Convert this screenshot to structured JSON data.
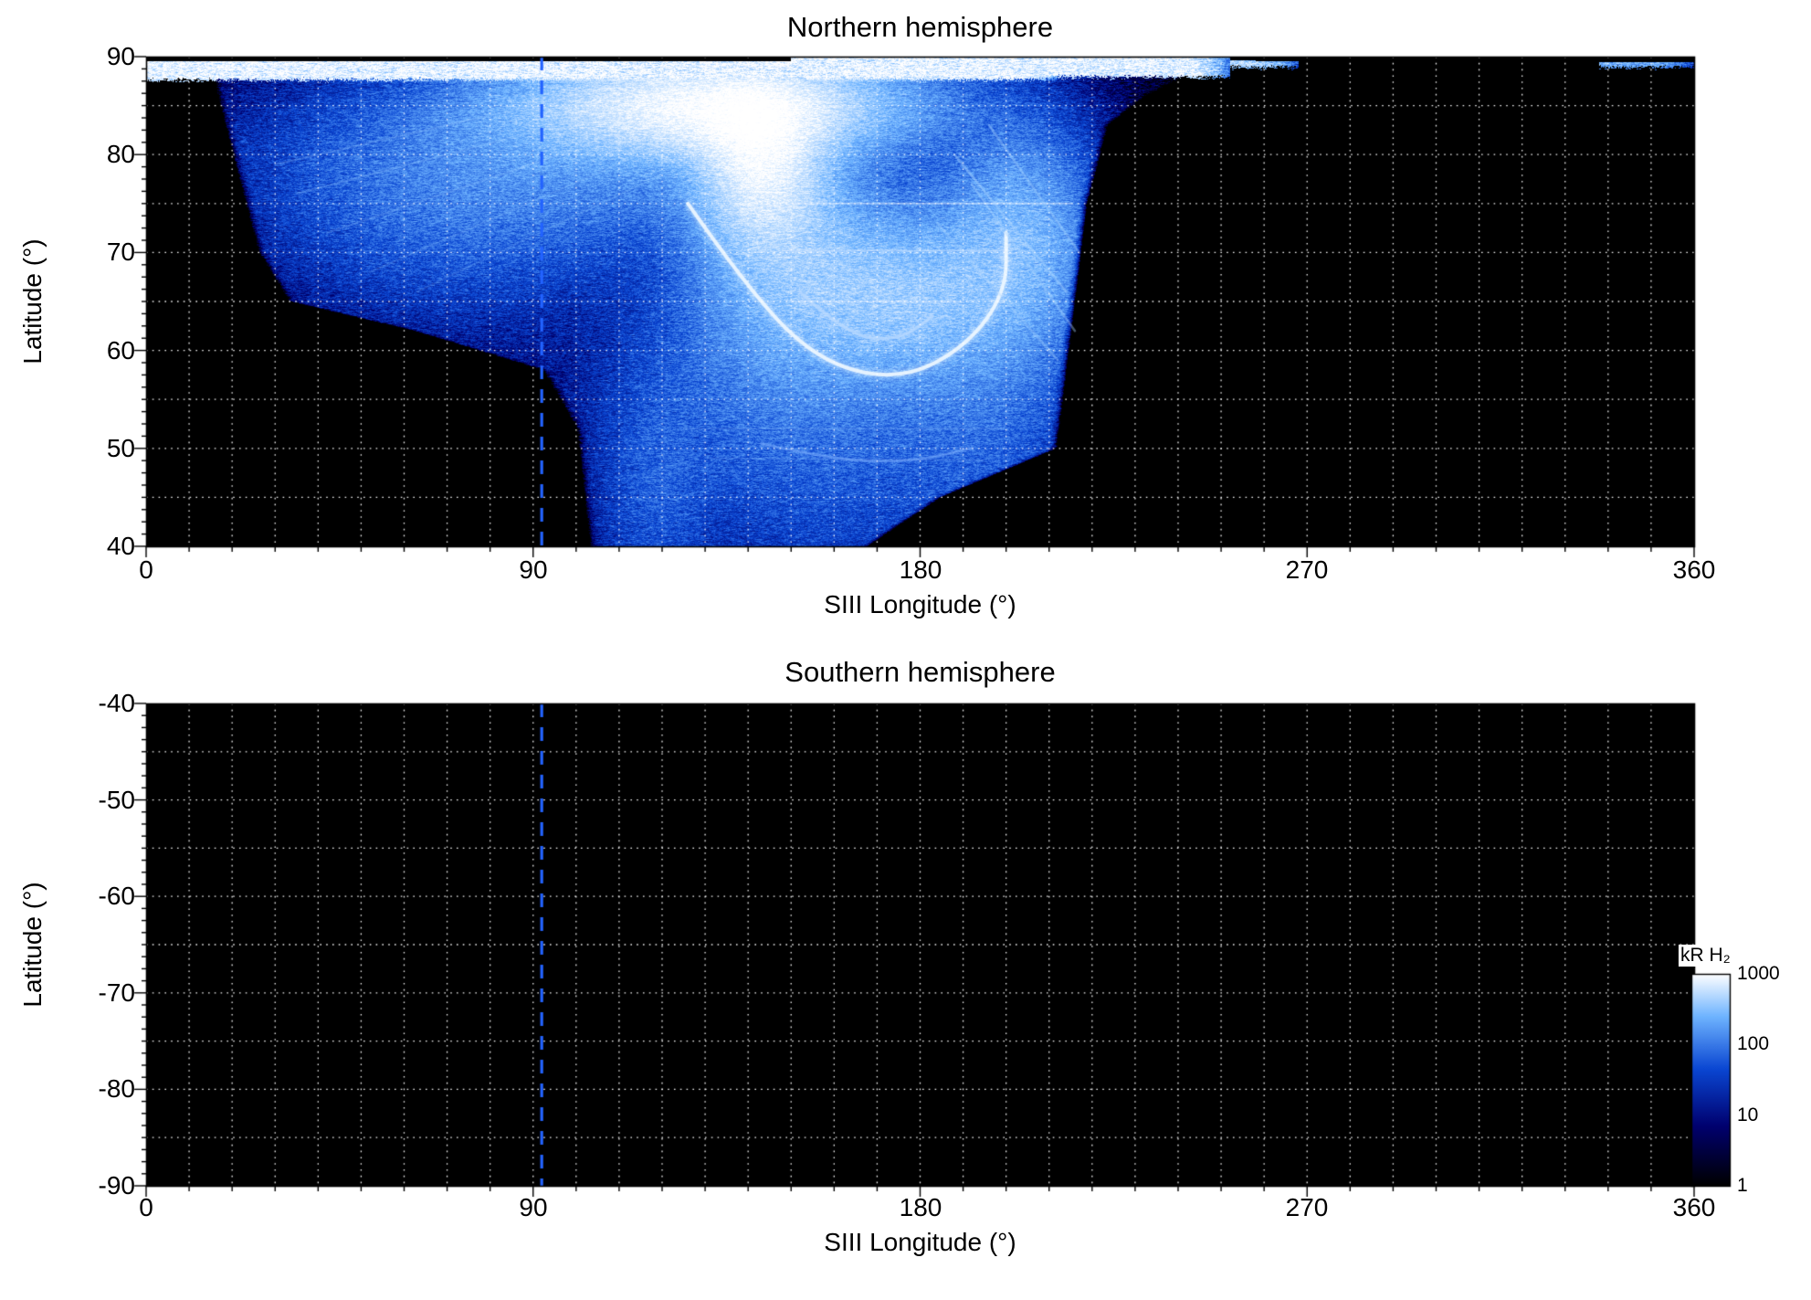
{
  "figure": {
    "background": "#ffffff",
    "colorbar": {
      "label": "kR H₂",
      "ticks": [
        "1000",
        "100",
        "10",
        "1"
      ],
      "scale": "log",
      "range": [
        1,
        1000
      ],
      "colormap": {
        "stops": [
          0,
          0.28,
          0.55,
          0.8,
          1
        ],
        "colors": [
          "#000000",
          "#00006e",
          "#0a46d2",
          "#6fb4ff",
          "#ffffff"
        ]
      }
    }
  },
  "chart_data": [
    {
      "type": "heatmap",
      "title": "Northern hemisphere",
      "xlabel": "SIII Longitude (°)",
      "ylabel": "Latitude (°)",
      "xlim": [
        0,
        360
      ],
      "ylim": [
        40,
        90
      ],
      "xticks": [
        "0",
        "90",
        "180",
        "270",
        "360"
      ],
      "yticks": [
        "90",
        "80",
        "70",
        "60",
        "50",
        "40"
      ],
      "grid": {
        "color": "#ffffff",
        "style": "dotted",
        "lon_step": 10,
        "lat_step": 5
      },
      "background": "#000000",
      "marker_line": {
        "longitude": 92,
        "color": "#2363ff",
        "style": "dashed"
      },
      "units": "kR H₂",
      "intensity_range_kR": [
        1,
        1000
      ],
      "emission": {
        "present": true,
        "description": "Speckled H2 auroral emission covering ~15°–220° longitude: bright white polar band near 88°–90° latitude (lon 0°–250°), a bright funnel narrowing from (130°,85°) down toward (150°,60°), a white hook-shaped auroral arc through (160°,58°)–(200°,67°), fanned streaks on both flanks, diffuse dark-blue speckle down to 40° latitude between lon ~110°–215°, sharp cutoff near lon 218°; thin polar streak near lon 340°–360°.",
        "left_boundary": [
          [
            40,
            103
          ],
          [
            52,
            100
          ],
          [
            58,
            92
          ],
          [
            62,
            62
          ],
          [
            65,
            33
          ],
          [
            70,
            26
          ],
          [
            80,
            20
          ],
          [
            90,
            14
          ]
        ],
        "right_boundary": [
          [
            40,
            168
          ],
          [
            45,
            185
          ],
          [
            50,
            212
          ],
          [
            75,
            219
          ],
          [
            83,
            224
          ],
          [
            86,
            233
          ],
          [
            90,
            252
          ]
        ],
        "blobs": [
          {
            "lon": 132,
            "lat": 85,
            "sx": 26,
            "sy": 3.2,
            "peak": 900
          },
          {
            "lon": 143,
            "lat": 79,
            "sx": 9,
            "sy": 5,
            "peak": 700
          },
          {
            "lon": 150,
            "lat": 69,
            "sx": 13,
            "sy": 6.5,
            "peak": 280
          },
          {
            "lon": 177,
            "lat": 65.5,
            "sx": 15,
            "sy": 5.5,
            "peak": 320
          },
          {
            "lon": 203,
            "lat": 71,
            "sx": 11,
            "sy": 7,
            "peak": 260
          },
          {
            "lon": 95,
            "lat": 80,
            "sx": 38,
            "sy": 5.5,
            "peak": 130
          },
          {
            "lon": 70,
            "lat": 72,
            "sx": 26,
            "sy": 6,
            "peak": 45
          },
          {
            "lon": 148,
            "lat": 58,
            "sx": 20,
            "sy": 7,
            "peak": 70
          },
          {
            "lon": 160,
            "lat": 47,
            "sx": 26,
            "sy": 8,
            "peak": 40
          },
          {
            "lon": 118,
            "lat": 46,
            "sx": 8,
            "sy": 8,
            "peak": 45
          },
          {
            "lon": 196,
            "lat": 54,
            "sx": 14,
            "sy": 8,
            "peak": 55
          },
          {
            "lon": 140,
            "lat": 65,
            "sx": 60,
            "sy": 18,
            "peak": 12
          }
        ],
        "polar_bands": [
          {
            "lat": [
              87.6,
              89.5
            ],
            "lon": [
              0,
              212
            ],
            "peak": 900
          },
          {
            "lat": [
              87.9,
              90
            ],
            "lon": [
              150,
              252
            ],
            "peak": 850
          },
          {
            "lat": [
              88.9,
              89.6
            ],
            "lon": [
              252,
              268
            ],
            "peak": 500
          },
          {
            "lat": [
              88.9,
              89.4
            ],
            "lon": [
              338,
              360
            ],
            "peak": 260
          }
        ],
        "top_black": {
          "above_lat": 89.55,
          "except_lon": [
            150,
            258
          ]
        },
        "arcs": [
          {
            "pts": [
              [
                126,
                75
              ],
              [
                142,
                65
              ],
              [
                158,
                58.5
              ],
              [
                176,
                57
              ],
              [
                191,
                60.5
              ],
              [
                200,
                66
              ],
              [
                200,
                72
              ]
            ],
            "w": 4,
            "color": "rgba(240,248,255,0.9)",
            "blur": 7
          },
          {
            "pts": [
              [
                152,
                66
              ],
              [
                163,
                61.5
              ],
              [
                175,
                61
              ],
              [
                183,
                63.5
              ]
            ],
            "w": 3,
            "color": "rgba(185,218,255,0.75)",
            "blur": 5
          },
          {
            "pts": [
              [
                143,
                50.5
              ],
              [
                160,
                48.8
              ],
              [
                178,
                48.6
              ],
              [
                192,
                50
              ]
            ],
            "w": 2.5,
            "color": "rgba(130,180,255,0.5)",
            "blur": 4
          }
        ],
        "streaks": [
          {
            "pts": [
              [
                30,
                79
              ],
              [
                100,
                86
              ]
            ],
            "w": 2,
            "color": "rgba(150,200,255,0.30)"
          },
          {
            "pts": [
              [
                35,
                76
              ],
              [
                105,
                84
              ]
            ],
            "w": 2,
            "color": "rgba(150,200,255,0.28)"
          },
          {
            "pts": [
              [
                42,
                72
              ],
              [
                110,
                82
              ]
            ],
            "w": 2,
            "color": "rgba(150,200,255,0.25)"
          },
          {
            "pts": [
              [
                52,
                68
              ],
              [
                115,
                80
              ]
            ],
            "w": 2,
            "color": "rgba(150,200,255,0.22)"
          },
          {
            "pts": [
              [
                63,
                66
              ],
              [
                120,
                78
              ]
            ],
            "w": 2,
            "color": "rgba(150,200,255,0.20)"
          },
          {
            "pts": [
              [
                188,
                80
              ],
              [
                214,
                66
              ]
            ],
            "w": 2.5,
            "color": "rgba(170,212,255,0.45)"
          },
          {
            "pts": [
              [
                192,
                77
              ],
              [
                216,
                62
              ]
            ],
            "w": 2.5,
            "color": "rgba(170,212,255,0.40)"
          },
          {
            "pts": [
              [
                196,
                83
              ],
              [
                217,
                70
              ]
            ],
            "w": 2.5,
            "color": "rgba(170,212,255,0.38)"
          },
          {
            "pts": [
              [
                184,
                73
              ],
              [
                212,
                59
              ]
            ],
            "w": 2.5,
            "color": "rgba(170,212,255,0.35)"
          },
          {
            "pts": [
              [
                150,
                75
              ],
              [
                215,
                75
              ]
            ],
            "w": 2,
            "color": "rgba(220,235,255,0.5)"
          },
          {
            "pts": [
              [
                148,
                70.2
              ],
              [
                200,
                70.2
              ]
            ],
            "w": 2,
            "color": "rgba(220,235,255,0.4)"
          },
          {
            "pts": [
              [
                150,
                65
              ],
              [
                190,
                65
              ]
            ],
            "w": 2,
            "color": "rgba(220,235,255,0.35)"
          },
          {
            "pts": [
              [
                125,
                52
              ],
              [
                200,
                52
              ]
            ],
            "w": 1.5,
            "color": "rgba(160,200,255,0.22)"
          },
          {
            "pts": [
              [
                130,
                49
              ],
              [
                195,
                48.8
              ]
            ],
            "w": 1.5,
            "color": "rgba(160,200,255,0.18)"
          }
        ]
      }
    },
    {
      "type": "heatmap",
      "title": "Southern hemisphere",
      "xlabel": "SIII Longitude (°)",
      "ylabel": "Latitude (°)",
      "xlim": [
        0,
        360
      ],
      "ylim": [
        -90,
        -40
      ],
      "xticks": [
        "0",
        "90",
        "180",
        "270",
        "360"
      ],
      "yticks": [
        "-40",
        "-50",
        "-60",
        "-70",
        "-80",
        "-90"
      ],
      "grid": {
        "color": "#ffffff",
        "style": "dotted",
        "lon_step": 10,
        "lat_step": 5
      },
      "background": "#000000",
      "marker_line": {
        "longitude": 92,
        "color": "#2363ff",
        "style": "dashed"
      },
      "units": "kR H₂",
      "emission": {
        "present": false,
        "description": "No emission data shown; panel is entirely black."
      }
    }
  ]
}
